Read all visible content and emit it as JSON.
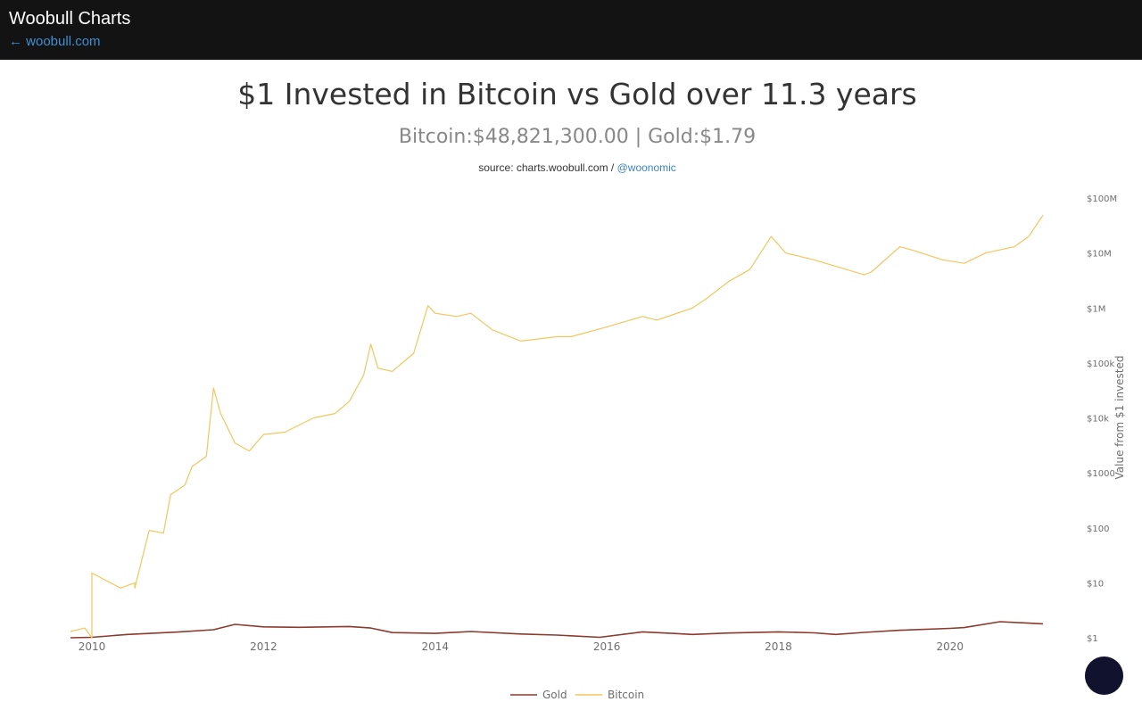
{
  "header": {
    "brand": "Woobull Charts",
    "back_link": "← woobull.com"
  },
  "title": "$1 Invested in Bitcoin vs Gold over 11.3 years",
  "subtitle": "Bitcoin:$48,821,300.00 | Gold:$1.79",
  "source": {
    "prefix": "source: charts.woobull.com / ",
    "link": "@woonomic"
  },
  "colors": {
    "bitcoin": "#f2c65f",
    "gold": "#8b3a2e",
    "header_bg": "#131313",
    "link": "#3c84c8",
    "fab": "#11122e"
  },
  "chart_data": {
    "type": "line",
    "title": "$1 Invested in Bitcoin vs Gold over 11.3 years",
    "subtitle": "Bitcoin:$48,821,300.00 | Gold:$1.79",
    "ylabel": "Value from $1 invested",
    "yscale": "log",
    "ylim": [
      1,
      100000000
    ],
    "yticks": [
      {
        "value": 1,
        "label": "$1"
      },
      {
        "value": 10,
        "label": "$10"
      },
      {
        "value": 100,
        "label": "$100"
      },
      {
        "value": 1000,
        "label": "$1000"
      },
      {
        "value": 10000,
        "label": "$10k"
      },
      {
        "value": 100000,
        "label": "$100k"
      },
      {
        "value": 1000000,
        "label": "$1M"
      },
      {
        "value": 10000000,
        "label": "$10M"
      },
      {
        "value": 100000000,
        "label": "$100M"
      }
    ],
    "xlim": [
      "2009-10",
      "2021-02"
    ],
    "xticks": [
      "2010",
      "2012",
      "2014",
      "2016",
      "2018",
      "2020"
    ],
    "legend_position": "bottom-center",
    "grid": false,
    "series": [
      {
        "name": "Gold",
        "color": "#8b3a2e",
        "x": [
          "2009-10",
          "2010-01",
          "2010-06",
          "2011-01",
          "2011-06",
          "2011-09",
          "2012-01",
          "2012-06",
          "2013-01",
          "2013-04",
          "2013-07",
          "2014-01",
          "2014-06",
          "2015-01",
          "2015-06",
          "2015-12",
          "2016-06",
          "2017-01",
          "2017-06",
          "2018-01",
          "2018-06",
          "2018-09",
          "2019-01",
          "2019-06",
          "2020-01",
          "2020-03",
          "2020-08",
          "2021-02"
        ],
        "y": [
          1.0,
          1.02,
          1.15,
          1.27,
          1.4,
          1.75,
          1.58,
          1.55,
          1.6,
          1.5,
          1.24,
          1.2,
          1.3,
          1.17,
          1.12,
          1.02,
          1.28,
          1.15,
          1.22,
          1.28,
          1.23,
          1.15,
          1.25,
          1.37,
          1.48,
          1.53,
          1.96,
          1.79
        ]
      },
      {
        "name": "Bitcoin",
        "color": "#f2c65f",
        "x": [
          "2009-10",
          "2009-12",
          "2010-01",
          "2010-01",
          "2010-05",
          "2010-07",
          "2010-07",
          "2010-09",
          "2010-11",
          "2010-12",
          "2011-02",
          "2011-03",
          "2011-05",
          "2011-06",
          "2011-07",
          "2011-09",
          "2011-11",
          "2012-01",
          "2012-04",
          "2012-08",
          "2012-11",
          "2013-01",
          "2013-03",
          "2013-04",
          "2013-05",
          "2013-07",
          "2013-10",
          "2013-12",
          "2014-01",
          "2014-04",
          "2014-06",
          "2014-09",
          "2015-01",
          "2015-06",
          "2015-08",
          "2016-01",
          "2016-06",
          "2016-08",
          "2017-01",
          "2017-03",
          "2017-06",
          "2017-09",
          "2017-12",
          "2018-02",
          "2018-06",
          "2019-01",
          "2019-02",
          "2019-06",
          "2019-08",
          "2019-12",
          "2020-03",
          "2020-06",
          "2020-10",
          "2020-12",
          "2021-02"
        ],
        "y": [
          1.3,
          1.5,
          1.0,
          15,
          8,
          10,
          8,
          90,
          80,
          400,
          600,
          1300,
          2000,
          35000,
          12000,
          3500,
          2500,
          5000,
          5500,
          10000,
          12000,
          20000,
          60000,
          220000,
          80000,
          70000,
          150000,
          1100000,
          800000,
          700000,
          800000,
          400000,
          250000,
          300000,
          300000,
          450000,
          700000,
          600000,
          1000000,
          1500000,
          3000000,
          5000000,
          20000000,
          10000000,
          7500000,
          4000000,
          4500000,
          13000000,
          11000000,
          7500000,
          6500000,
          10000000,
          13000000,
          20000000,
          48821300
        ]
      }
    ]
  },
  "legend": [
    {
      "label": "Gold",
      "color": "#8b3a2e"
    },
    {
      "label": "Bitcoin",
      "color": "#f2c65f"
    }
  ]
}
